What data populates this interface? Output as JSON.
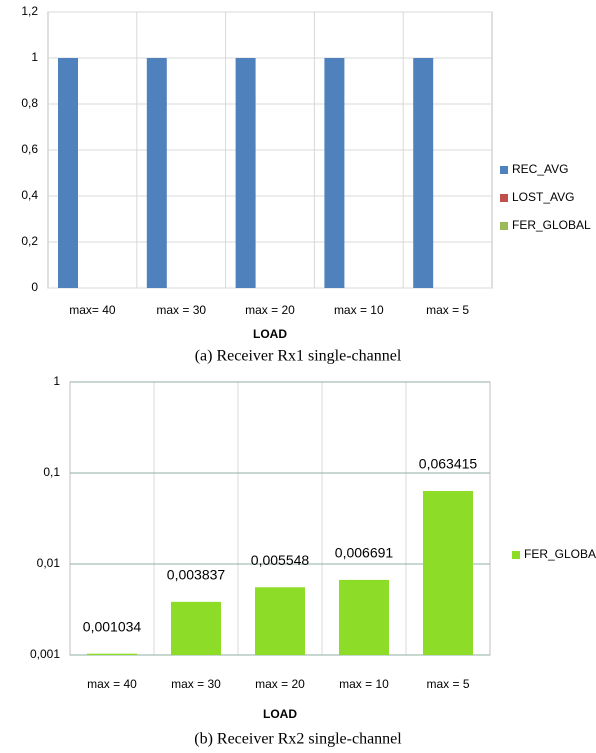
{
  "chart_data": [
    {
      "type": "bar",
      "xlabel": "LOAD",
      "caption": "(a) Receiver Rx1 single-channel",
      "categories": [
        "max= 40",
        "max = 30",
        "max = 20",
        "max = 10",
        "max = 5"
      ],
      "series": [
        {
          "name": "REC_AVG",
          "color": "#4f81bd",
          "values": [
            1,
            1,
            1,
            1,
            1
          ]
        },
        {
          "name": "LOST_AVG",
          "color": "#c0504d",
          "values": [
            0,
            0,
            0,
            0,
            0
          ]
        },
        {
          "name": "FER_GLOBAL",
          "color": "#9bbb59",
          "values": [
            0,
            0,
            0,
            0,
            0
          ]
        }
      ],
      "ylim": [
        0,
        1.2
      ],
      "yticks": [
        0,
        {
          "value": 0.2,
          "label": "0,2"
        },
        {
          "value": 0.4,
          "label": "0,4"
        },
        {
          "value": 0.6,
          "label": "0,6"
        },
        {
          "value": 0.8,
          "label": "0,8"
        },
        1,
        {
          "value": 1.2,
          "label": "1,2"
        }
      ],
      "grid": true,
      "log_scale": false,
      "legend": "right"
    },
    {
      "type": "bar",
      "xlabel": "LOAD",
      "caption": "(b) Receiver Rx2 single-channel",
      "categories": [
        "max = 40",
        "max = 30",
        "max = 20",
        "max = 10",
        "max = 5"
      ],
      "series": [
        {
          "name": "FER_GLOBAL",
          "color": "#8cdc28",
          "values": [
            0.001034,
            0.003837,
            0.005548,
            0.006691,
            0.063415
          ],
          "value_labels": [
            "0,001034",
            "0,003837",
            "0,005548",
            "0,006691",
            "0,063415"
          ]
        }
      ],
      "ylim": [
        0.001,
        1
      ],
      "yticks": [
        {
          "value": 0.001,
          "label": "0,001"
        },
        {
          "value": 0.01,
          "label": "0,01"
        },
        {
          "value": 0.1,
          "label": "0,1"
        },
        1
      ],
      "grid": true,
      "log_scale": true,
      "legend": "right"
    }
  ]
}
